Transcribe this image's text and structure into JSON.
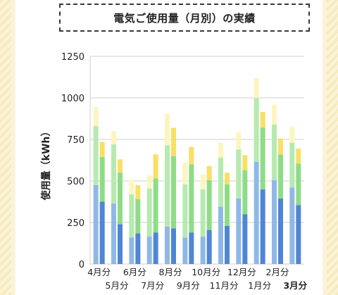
{
  "header": {
    "title": "電気ご使用量（月別）の実績"
  },
  "chart_data": {
    "type": "bar",
    "stacked": true,
    "grouped": true,
    "title": "",
    "xlabel": "",
    "ylabel": "使用量（kWh）",
    "ylim": [
      0,
      1250
    ],
    "yticks": [
      0,
      250,
      500,
      750,
      1000,
      1250
    ],
    "grid": true,
    "categories": [
      "4月分",
      "5月分",
      "6月分",
      "7月分",
      "8月分",
      "9月分",
      "10月分",
      "11月分",
      "12月分",
      "1月分",
      "2月分",
      "3月分"
    ],
    "current_category": "3月分",
    "series_colors": {
      "previous_year": [
        "#8fb8e6",
        "#b6eab0",
        "#fdf5c0"
      ],
      "current_year": [
        "#4f86d6",
        "#8fdc86",
        "#f8e066"
      ]
    },
    "series": [
      {
        "group": "previous_year",
        "layer": 1,
        "values": [
          475,
          365,
          160,
          165,
          225,
          160,
          165,
          345,
          395,
          615,
          505,
          460
        ]
      },
      {
        "group": "previous_year",
        "layer": 2,
        "values": [
          355,
          355,
          260,
          290,
          490,
          320,
          285,
          295,
          295,
          385,
          335,
          270
        ]
      },
      {
        "group": "previous_year",
        "layer": 3,
        "values": [
          115,
          80,
          90,
          80,
          190,
          130,
          90,
          90,
          105,
          120,
          120,
          95
        ]
      },
      {
        "group": "current_year",
        "layer": 1,
        "values": [
          375,
          240,
          185,
          190,
          215,
          190,
          205,
          230,
          300,
          450,
          395,
          355
        ]
      },
      {
        "group": "current_year",
        "layer": 2,
        "values": [
          270,
          310,
          205,
          325,
          435,
          410,
          300,
          250,
          265,
          370,
          265,
          250
        ]
      },
      {
        "group": "current_year",
        "layer": 3,
        "values": [
          90,
          80,
          85,
          145,
          170,
          105,
          85,
          70,
          90,
          95,
          95,
          90
        ]
      }
    ]
  }
}
